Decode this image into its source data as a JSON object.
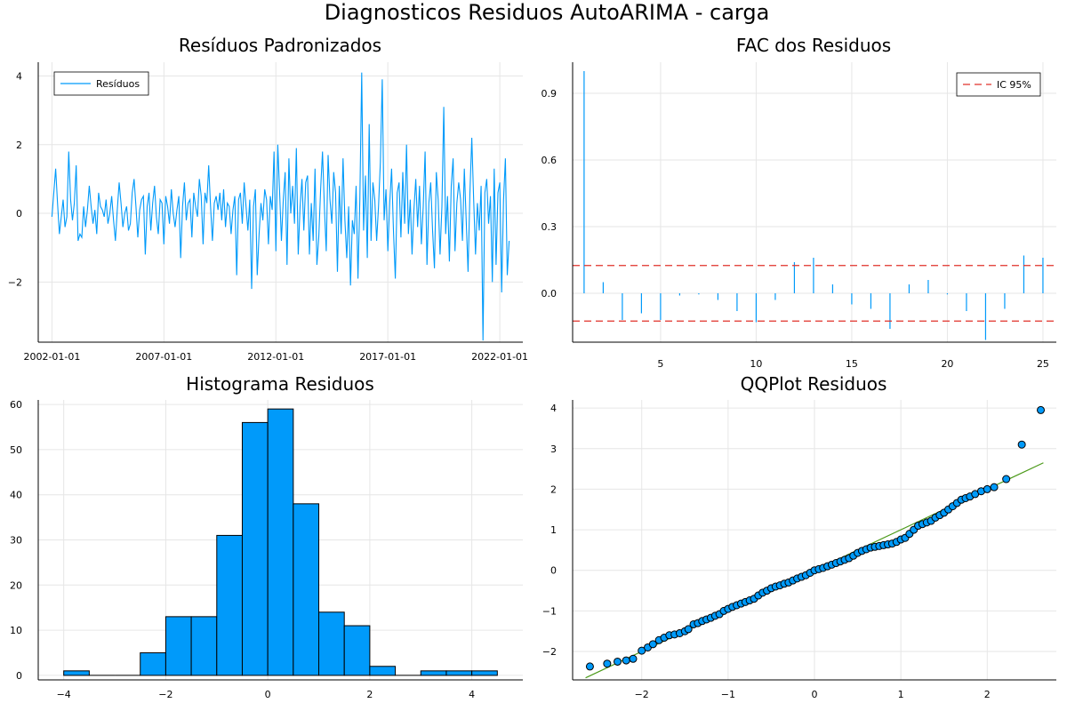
{
  "figure_title": "Diagnosticos Residuos AutoARIMA - carga",
  "colors": {
    "series": "#009AFA",
    "ci": "#E0302A",
    "qqline": "#4C9A1A",
    "grid": "#e6e6e6"
  },
  "chart_data": [
    {
      "id": "residuals",
      "type": "line",
      "title": "Resíduos Padronizados",
      "legend": [
        "Resíduos"
      ],
      "legend_position": "top-left",
      "x_ticks": [
        "2002-01-01",
        "2007-01-01",
        "2012-01-01",
        "2017-01-01",
        "2022-01-01"
      ],
      "x_start": "2002-01-01",
      "frequency": "monthly",
      "n_points": 245,
      "y_ticks": [
        -2,
        0,
        2,
        4
      ],
      "ylim": [
        -3.75,
        4.4
      ],
      "grid": true,
      "series": [
        {
          "name": "Resíduos",
          "values": [
            -0.1,
            0.6,
            1.3,
            0.3,
            -0.6,
            -0.1,
            0.4,
            -0.4,
            -0.1,
            1.8,
            0.4,
            -0.2,
            0.3,
            1.4,
            -0.8,
            -0.6,
            -0.7,
            0.2,
            -0.4,
            0.1,
            0.8,
            0.2,
            -0.3,
            0.1,
            -0.6,
            0.6,
            0.2,
            0.1,
            -0.1,
            0.4,
            -0.3,
            0.0,
            0.5,
            -0.2,
            -0.8,
            0.1,
            0.9,
            0.3,
            -0.4,
            0.0,
            0.2,
            -0.5,
            -0.3,
            0.6,
            1.0,
            0.2,
            -0.7,
            0.1,
            0.4,
            0.5,
            -1.2,
            0.2,
            0.6,
            -0.5,
            0.3,
            0.8,
            -0.1,
            -0.6,
            0.4,
            0.3,
            -0.9,
            0.5,
            0.2,
            -0.3,
            0.7,
            0.0,
            -0.4,
            0.1,
            0.5,
            -1.3,
            0.2,
            0.9,
            -0.2,
            0.3,
            0.4,
            -0.7,
            0.6,
            0.2,
            -0.1,
            1.0,
            0.5,
            -0.9,
            0.6,
            0.3,
            1.4,
            0.2,
            -0.8,
            0.3,
            0.5,
            0.1,
            0.6,
            -0.2,
            0.7,
            -0.4,
            0.3,
            0.2,
            -0.6,
            0.1,
            0.5,
            -1.8,
            0.4,
            0.6,
            -0.3,
            0.9,
            0.2,
            -0.5,
            0.4,
            -2.2,
            0.2,
            0.7,
            -1.8,
            -0.6,
            0.3,
            -0.2,
            0.7,
            0.4,
            -0.9,
            0.5,
            0.1,
            1.8,
            -1.1,
            2.0,
            0.6,
            -0.8,
            0.4,
            1.2,
            -1.5,
            1.6,
            0.0,
            0.8,
            -0.3,
            1.9,
            -1.2,
            0.2,
            1.0,
            -0.5,
            0.9,
            1.1,
            -1.2,
            0.3,
            -0.8,
            1.3,
            -1.5,
            -0.7,
            0.7,
            1.8,
            0.2,
            -1.1,
            1.7,
            0.4,
            -0.3,
            1.2,
            0.6,
            -1.7,
            0.8,
            -0.6,
            1.6,
            -0.2,
            -1.3,
            0.2,
            -2.1,
            -0.2,
            -0.6,
            0.8,
            -1.9,
            0.4,
            4.1,
            -0.5,
            1.1,
            -1.3,
            2.6,
            -0.8,
            0.9,
            0.4,
            -0.8,
            0.2,
            1.5,
            3.9,
            -0.2,
            0.7,
            -1.1,
            0.3,
            1.3,
            -0.5,
            -1.9,
            0.6,
            0.9,
            -0.7,
            1.2,
            -0.3,
            2.0,
            -0.6,
            0.4,
            -1.2,
            0.1,
            1.0,
            -0.4,
            0.8,
            -0.9,
            0.2,
            1.8,
            -1.5,
            0.3,
            0.9,
            -0.5,
            -1.6,
            1.2,
            0.4,
            -1.2,
            0.2,
            3.1,
            -0.6,
            0.5,
            -1.4,
            0.8,
            1.6,
            -1.1,
            0.3,
            0.9,
            0.4,
            -0.8,
            1.3,
            -0.2,
            -1.7,
            0.6,
            2.2,
            0.4,
            -1.2,
            0.3,
            -0.5,
            0.8,
            -3.7,
            0.6,
            1.0,
            -0.3,
            0.5,
            -2.0,
            1.3,
            -1.5,
            0.6,
            0.9,
            -2.3,
            0.4,
            1.6,
            -1.8,
            -0.8
          ]
        }
      ]
    },
    {
      "id": "acf",
      "type": "bar",
      "title": "FAC dos Residuos",
      "legend": [
        "IC 95%"
      ],
      "legend_position": "top-right",
      "x_ticks": [
        5,
        10,
        15,
        20,
        25
      ],
      "y_ticks": [
        0.0,
        0.3,
        0.6,
        0.9
      ],
      "xlim": [
        0.4,
        25.7
      ],
      "ylim": [
        -0.22,
        1.04
      ],
      "grid": true,
      "confidence_interval": 0.125,
      "x": [
        1,
        2,
        3,
        4,
        5,
        6,
        7,
        8,
        9,
        10,
        11,
        12,
        13,
        14,
        15,
        16,
        17,
        18,
        19,
        20,
        21,
        22,
        23,
        24,
        25
      ],
      "values": [
        1.0,
        0.05,
        -0.12,
        -0.09,
        -0.12,
        -0.01,
        -0.005,
        -0.03,
        -0.08,
        -0.13,
        -0.03,
        0.14,
        0.16,
        0.04,
        -0.05,
        -0.07,
        -0.16,
        0.04,
        0.06,
        -0.005,
        -0.08,
        -0.21,
        -0.07,
        0.17,
        0.16
      ]
    },
    {
      "id": "histogram",
      "type": "bar",
      "title": "Histograma Residuos",
      "x_ticks": [
        -4,
        -2,
        0,
        2,
        4
      ],
      "y_ticks": [
        0,
        10,
        20,
        30,
        40,
        50,
        60
      ],
      "xlim": [
        -4.5,
        5.0
      ],
      "ylim": [
        -1,
        61
      ],
      "grid": true,
      "bin_width": 0.5,
      "bins": [
        {
          "start": -4.0,
          "count": 1
        },
        {
          "start": -3.5,
          "count": 0
        },
        {
          "start": -3.0,
          "count": 0
        },
        {
          "start": -2.5,
          "count": 5
        },
        {
          "start": -2.0,
          "count": 13
        },
        {
          "start": -1.5,
          "count": 13
        },
        {
          "start": -1.0,
          "count": 31
        },
        {
          "start": -0.5,
          "count": 56
        },
        {
          "start": 0.0,
          "count": 59
        },
        {
          "start": 0.5,
          "count": 38
        },
        {
          "start": 1.0,
          "count": 14
        },
        {
          "start": 1.5,
          "count": 11
        },
        {
          "start": 2.0,
          "count": 2
        },
        {
          "start": 2.5,
          "count": 0
        },
        {
          "start": 3.0,
          "count": 1
        },
        {
          "start": 3.5,
          "count": 1
        },
        {
          "start": 4.0,
          "count": 1
        }
      ]
    },
    {
      "id": "qqplot",
      "type": "scatter",
      "title": "QQPlot Residuos",
      "x_ticks": [
        -2,
        -1,
        0,
        1,
        2
      ],
      "y_ticks": [
        -2,
        -1,
        0,
        1,
        2,
        3,
        4
      ],
      "xlim": [
        -2.8,
        2.8
      ],
      "ylim": [
        -2.7,
        4.2
      ],
      "grid": true,
      "reference_line": {
        "x": [
          -2.65,
          2.65
        ],
        "y": [
          -2.65,
          2.65
        ]
      },
      "points": [
        [
          -2.6,
          -2.37
        ],
        [
          -2.4,
          -2.3
        ],
        [
          -2.28,
          -2.25
        ],
        [
          -2.18,
          -2.22
        ],
        [
          -2.1,
          -2.18
        ],
        [
          -2.0,
          -1.98
        ],
        [
          -1.93,
          -1.9
        ],
        [
          -1.87,
          -1.82
        ],
        [
          -1.8,
          -1.72
        ],
        [
          -1.74,
          -1.66
        ],
        [
          -1.68,
          -1.6
        ],
        [
          -1.62,
          -1.58
        ],
        [
          -1.56,
          -1.55
        ],
        [
          -1.5,
          -1.5
        ],
        [
          -1.46,
          -1.45
        ],
        [
          -1.4,
          -1.33
        ],
        [
          -1.35,
          -1.3
        ],
        [
          -1.3,
          -1.25
        ],
        [
          -1.25,
          -1.21
        ],
        [
          -1.2,
          -1.17
        ],
        [
          -1.15,
          -1.12
        ],
        [
          -1.1,
          -1.08
        ],
        [
          -1.05,
          -1.0
        ],
        [
          -1.0,
          -0.95
        ],
        [
          -0.95,
          -0.9
        ],
        [
          -0.9,
          -0.86
        ],
        [
          -0.85,
          -0.82
        ],
        [
          -0.8,
          -0.78
        ],
        [
          -0.75,
          -0.74
        ],
        [
          -0.7,
          -0.7
        ],
        [
          -0.65,
          -0.62
        ],
        [
          -0.6,
          -0.55
        ],
        [
          -0.55,
          -0.5
        ],
        [
          -0.5,
          -0.44
        ],
        [
          -0.45,
          -0.4
        ],
        [
          -0.4,
          -0.37
        ],
        [
          -0.35,
          -0.33
        ],
        [
          -0.3,
          -0.3
        ],
        [
          -0.25,
          -0.25
        ],
        [
          -0.2,
          -0.2
        ],
        [
          -0.15,
          -0.16
        ],
        [
          -0.1,
          -0.12
        ],
        [
          -0.05,
          -0.06
        ],
        [
          0.0,
          0.0
        ],
        [
          0.05,
          0.03
        ],
        [
          0.1,
          0.06
        ],
        [
          0.15,
          0.1
        ],
        [
          0.2,
          0.14
        ],
        [
          0.25,
          0.18
        ],
        [
          0.3,
          0.22
        ],
        [
          0.35,
          0.26
        ],
        [
          0.4,
          0.3
        ],
        [
          0.45,
          0.36
        ],
        [
          0.5,
          0.43
        ],
        [
          0.55,
          0.48
        ],
        [
          0.6,
          0.52
        ],
        [
          0.65,
          0.56
        ],
        [
          0.7,
          0.58
        ],
        [
          0.75,
          0.6
        ],
        [
          0.8,
          0.62
        ],
        [
          0.85,
          0.64
        ],
        [
          0.9,
          0.66
        ],
        [
          0.95,
          0.7
        ],
        [
          1.0,
          0.76
        ],
        [
          1.05,
          0.8
        ],
        [
          1.1,
          0.9
        ],
        [
          1.15,
          1.0
        ],
        [
          1.2,
          1.1
        ],
        [
          1.25,
          1.14
        ],
        [
          1.3,
          1.18
        ],
        [
          1.35,
          1.22
        ],
        [
          1.4,
          1.3
        ],
        [
          1.45,
          1.36
        ],
        [
          1.5,
          1.42
        ],
        [
          1.55,
          1.5
        ],
        [
          1.6,
          1.58
        ],
        [
          1.65,
          1.66
        ],
        [
          1.7,
          1.74
        ],
        [
          1.75,
          1.78
        ],
        [
          1.8,
          1.82
        ],
        [
          1.86,
          1.88
        ],
        [
          1.93,
          1.95
        ],
        [
          2.0,
          2.0
        ],
        [
          2.08,
          2.05
        ],
        [
          2.22,
          2.25
        ],
        [
          2.4,
          3.1
        ],
        [
          2.62,
          3.95
        ]
      ]
    }
  ]
}
